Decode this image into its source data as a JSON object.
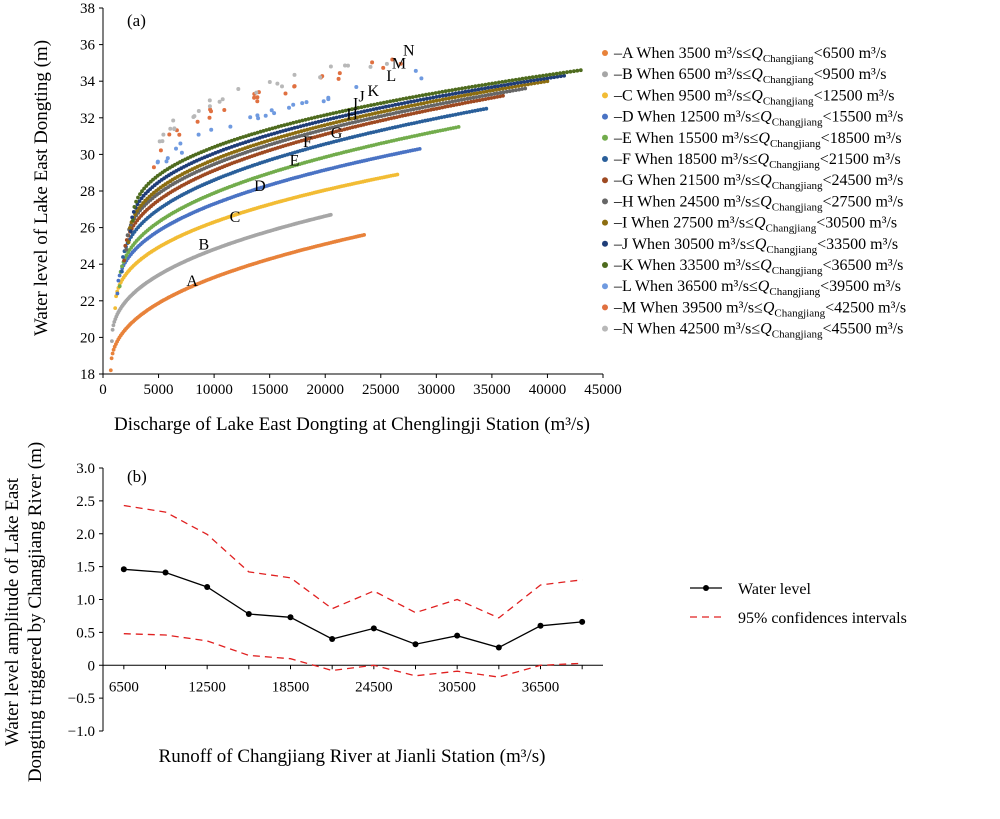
{
  "chart_data": [
    {
      "type": "scatter",
      "panel_label": "(a)",
      "xlabel": "Discharge of Lake East Dongting at Chenglingji Station (m³/s)",
      "ylabel": "Water level of Lake East Dongting (m)",
      "xlim": [
        0,
        45000
      ],
      "ylim": [
        18,
        38
      ],
      "xticks": [
        0,
        5000,
        10000,
        15000,
        20000,
        25000,
        30000,
        35000,
        40000,
        45000
      ],
      "yticks": [
        18,
        20,
        22,
        24,
        26,
        28,
        30,
        32,
        34,
        36,
        38
      ],
      "grid": false,
      "legend_position": "right",
      "series": [
        {
          "label": "A",
          "legend": [
            "–A When 3500 m³/s≤",
            "<6500 m³/s"
          ],
          "color": "#e8823a",
          "x_range": [
            700,
            23500
          ],
          "y_range": [
            18.2,
            25.6
          ],
          "curve_label_at": [
            7500,
            22.8
          ]
        },
        {
          "label": "B",
          "legend": [
            "–B When 6500 m³/s≤",
            "<9500 m³/s"
          ],
          "color": "#a6a6a6",
          "x_range": [
            800,
            20500
          ],
          "y_range": [
            19.8,
            26.7
          ],
          "curve_label_at": [
            8600,
            24.8
          ]
        },
        {
          "label": "C",
          "legend": [
            "–C When 9500 m³/s≤",
            "<12500 m³/s"
          ],
          "color": "#f2bc34",
          "x_range": [
            1100,
            26500
          ],
          "y_range": [
            21.6,
            28.9
          ],
          "curve_label_at": [
            11400,
            26.3
          ]
        },
        {
          "label": "D",
          "legend": [
            "–D When 12500 m³/s≤",
            "<15500 m³/s"
          ],
          "color": "#4a73c4",
          "x_range": [
            1300,
            28500
          ],
          "y_range": [
            22.4,
            30.3
          ],
          "curve_label_at": [
            13600,
            28.0
          ]
        },
        {
          "label": "E",
          "legend": [
            "–E When 15500 m³/s≤",
            "<18500 m³/s"
          ],
          "color": "#72ac4c",
          "x_range": [
            1500,
            32000
          ],
          "y_range": [
            22.8,
            31.5
          ],
          "curve_label_at": [
            16800,
            29.4
          ]
        },
        {
          "label": "F",
          "legend": [
            "–F When 18500 m³/s≤",
            "<21500 m³/s"
          ],
          "color": "#2a5f9a",
          "x_range": [
            1700,
            34500
          ],
          "y_range": [
            23.6,
            32.5
          ],
          "curve_label_at": [
            18000,
            30.4
          ]
        },
        {
          "label": "G",
          "legend": [
            "–G When 21500 m³/s≤",
            "<24500 m³/s"
          ],
          "color": "#9e4a22",
          "x_range": [
            1900,
            36000
          ],
          "y_range": [
            24.2,
            33.2
          ],
          "curve_label_at": [
            20500,
            30.9
          ]
        },
        {
          "label": "H",
          "legend": [
            "–H When 24500 m³/s≤",
            "<27500 m³/s"
          ],
          "color": "#666666",
          "x_range": [
            2100,
            38000
          ],
          "y_range": [
            24.8,
            33.6
          ],
          "curve_label_at": [
            21900,
            31.9
          ]
        },
        {
          "label": "I",
          "legend": [
            "–I When 27500 m³/s≤",
            "<30500 m³/s"
          ],
          "color": "#8c6d10",
          "x_range": [
            2300,
            40000
          ],
          "y_range": [
            25.2,
            34.0
          ],
          "curve_label_at": [
            22500,
            32.5
          ]
        },
        {
          "label": "J",
          "legend": [
            "–J When 30500 m³/s≤",
            "<33500 m³/s"
          ],
          "color": "#1f3d78",
          "x_range": [
            2500,
            41500
          ],
          "y_range": [
            25.8,
            34.3
          ],
          "curve_label_at": [
            23000,
            32.9
          ]
        },
        {
          "label": "K",
          "legend": [
            "–K When 33500 m³/s≤",
            "<36500 m³/s"
          ],
          "color": "#4e6b1e",
          "x_range": [
            2700,
            43000
          ],
          "y_range": [
            26.4,
            34.6
          ],
          "curve_label_at": [
            23800,
            33.2
          ]
        },
        {
          "label": "L",
          "legend": [
            "–L When 36500 m³/s≤",
            "<39500 m³/s"
          ],
          "color": "#6f9ae0",
          "x_range": [
            3500,
            30000
          ],
          "y_range": [
            27.2,
            34.5
          ],
          "curve_label_at": [
            25500,
            34.0
          ]
        },
        {
          "label": "M",
          "legend": [
            "–M When 39500 m³/s≤",
            "<42500 m³/s"
          ],
          "color": "#e07040",
          "x_range": [
            4500,
            28000
          ],
          "y_range": [
            28.8,
            35.2
          ],
          "curve_label_at": [
            26000,
            34.7
          ]
        },
        {
          "label": "N",
          "legend": [
            "–N When 42500 m³/s≤",
            "<45500 m³/s"
          ],
          "color": "#b8b8b8",
          "x_range": [
            5000,
            30000
          ],
          "y_range": [
            30.0,
            35.6
          ],
          "curve_label_at": [
            27000,
            35.4
          ]
        }
      ],
      "legend_q_symbol": "Q",
      "legend_q_subscript": "Changjiang"
    },
    {
      "type": "line",
      "panel_label": "(b)",
      "xlabel": "Runoff of Changjiang River at Jianli Station (m³/s)",
      "ylabel_lines": [
        "Water level amplitude of Lake East",
        "Dongting triggered by Changjiang River (m)"
      ],
      "ylim": [
        -1.0,
        3.0
      ],
      "yticks": [
        -1.0,
        -0.5,
        0,
        0.5,
        1.0,
        1.5,
        2.0,
        2.5,
        3.0
      ],
      "ytick_labels": [
        "−1.0",
        "−0.5",
        "0",
        "0.5",
        "1.0",
        "1.5",
        "2.0",
        "2.5",
        "3.0"
      ],
      "x": [
        6500,
        9500,
        12500,
        15500,
        18500,
        21500,
        24500,
        27500,
        30500,
        33500,
        36500,
        39500
      ],
      "xlim": [
        5000,
        41000
      ],
      "xtick_labels": [
        "6500",
        "12500",
        "18500",
        "24500",
        "30500",
        "36500"
      ],
      "xtick_values": [
        6500,
        12500,
        18500,
        24500,
        30500,
        36500
      ],
      "series": [
        {
          "name": "Water level",
          "style": "solid-marker",
          "color": "#000000",
          "values": [
            1.46,
            1.41,
            1.19,
            0.78,
            0.73,
            0.4,
            0.56,
            0.32,
            0.45,
            0.27,
            0.6,
            0.66
          ]
        },
        {
          "name": "95% confidences intervals",
          "style": "dashed",
          "color": "#e02020",
          "upper": [
            2.43,
            2.33,
            1.99,
            1.42,
            1.33,
            0.86,
            1.13,
            0.8,
            1.0,
            0.72,
            1.22,
            1.3
          ],
          "lower": [
            0.48,
            0.46,
            0.37,
            0.15,
            0.1,
            -0.08,
            0.0,
            -0.16,
            -0.09,
            -0.18,
            0.0,
            0.03
          ]
        }
      ]
    }
  ]
}
